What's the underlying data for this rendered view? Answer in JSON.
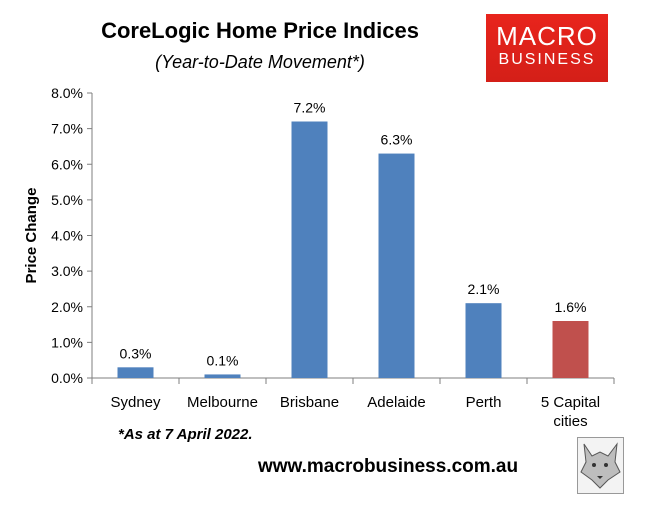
{
  "header": {
    "title": "CoreLogic Home Price Indices",
    "subtitle": "(Year-to-Date Movement*)"
  },
  "logo": {
    "line1": "MACRO",
    "line2": "BUSINESS",
    "color": "#e3221b"
  },
  "footnote": "*As at 7 April 2022.",
  "website": "www.macrobusiness.com.au",
  "chart_data": {
    "type": "bar",
    "title": "CoreLogic Home Price Indices",
    "subtitle": "(Year-to-Date Movement*)",
    "ylabel": "Price Change",
    "xlabel": "",
    "categories": [
      "Sydney",
      "Melbourne",
      "Brisbane",
      "Adelaide",
      "Perth",
      "5 Capital cities"
    ],
    "values": [
      0.3,
      0.1,
      7.2,
      6.3,
      2.1,
      1.6
    ],
    "data_labels": [
      "0.3%",
      "0.1%",
      "7.2%",
      "6.3%",
      "2.1%",
      "1.6%"
    ],
    "bar_colors": [
      "#4f81bd",
      "#4f81bd",
      "#4f81bd",
      "#4f81bd",
      "#4f81bd",
      "#c0504d"
    ],
    "ylim": [
      0,
      8
    ],
    "yticks": [
      0,
      1,
      2,
      3,
      4,
      5,
      6,
      7,
      8
    ],
    "ytick_labels": [
      "0.0%",
      "1.0%",
      "2.0%",
      "3.0%",
      "4.0%",
      "5.0%",
      "6.0%",
      "7.0%",
      "8.0%"
    ],
    "grid": false,
    "legend": "none"
  }
}
